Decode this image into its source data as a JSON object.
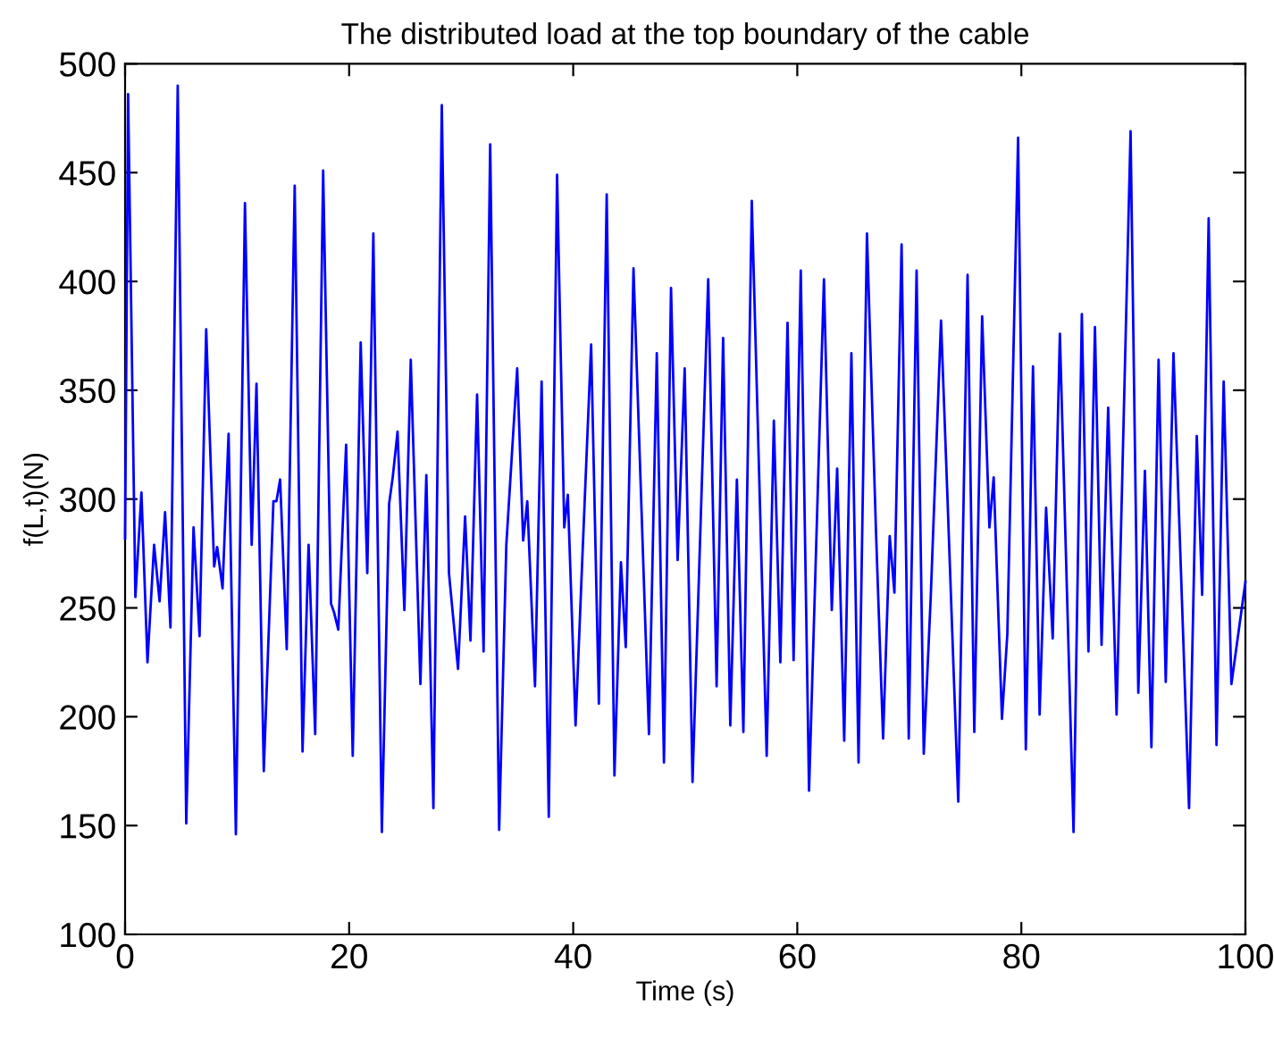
{
  "chart_data": {
    "type": "line",
    "title": "The distributed load at the top boundary of the cable",
    "xlabel": "Time (s)",
    "ylabel": "f(L,t)(N)",
    "xlim": [
      0,
      100
    ],
    "xticks": [
      0,
      20,
      40,
      60,
      80,
      100
    ],
    "ylim": [
      100,
      500
    ],
    "yticks": [
      100,
      150,
      200,
      250,
      300,
      350,
      400,
      450,
      500
    ],
    "grid": false,
    "legend": false,
    "line_style": "solid",
    "marker": "none",
    "series": [
      {
        "color": "#0000ff",
        "x": [
          0,
          0.27,
          0.92,
          1.46,
          2.0,
          2.59,
          3.08,
          3.57,
          4.05,
          4.7,
          5.46,
          6.11,
          6.65,
          7.24,
          7.95,
          8.22,
          8.7,
          9.24,
          9.89,
          10.7,
          11.3,
          11.73,
          12.38,
          13.24,
          13.51,
          13.84,
          14.43,
          15.14,
          15.84,
          16.38,
          16.97,
          17.68,
          18.38,
          18.65,
          19.03,
          19.73,
          20.32,
          21.03,
          21.62,
          22.16,
          22.92,
          23.57,
          23.89,
          24.32,
          24.93,
          25.5,
          26.36,
          26.89,
          27.52,
          28.27,
          28.91,
          29.72,
          30.35,
          30.83,
          31.42,
          32.0,
          32.59,
          33.39,
          34.03,
          35.0,
          35.53,
          35.9,
          36.59,
          37.18,
          37.82,
          38.56,
          39.2,
          39.52,
          40.21,
          40.8,
          41.6,
          42.29,
          42.99,
          43.68,
          44.26,
          44.69,
          45.38,
          46.02,
          46.76,
          47.46,
          48.1,
          48.73,
          49.32,
          49.95,
          50.65,
          52.05,
          52.8,
          53.38,
          54.02,
          54.61,
          55.19,
          55.94,
          57.27,
          57.91,
          58.49,
          59.13,
          59.67,
          60.31,
          61.05,
          62.38,
          63.08,
          63.56,
          64.19,
          64.83,
          65.47,
          66.22,
          67.02,
          67.66,
          68.25,
          68.67,
          69.31,
          69.95,
          70.65,
          71.29,
          71.92,
          72.83,
          73.41,
          74.37,
          75.2,
          75.8,
          76.5,
          77.15,
          77.53,
          78.27,
          78.75,
          79.71,
          80.4,
          81.04,
          81.63,
          82.21,
          82.8,
          83.44,
          84.66,
          85.4,
          85.99,
          86.57,
          87.16,
          87.75,
          88.5,
          89.75,
          90.44,
          91.03,
          91.61,
          92.25,
          92.89,
          93.58,
          94.97,
          95.66,
          96.14,
          96.72,
          97.42,
          98.06,
          98.75,
          100
        ],
        "values": [
          282,
          486,
          255,
          303,
          225,
          279,
          253,
          294,
          241,
          490,
          151,
          287,
          237,
          378,
          269,
          278,
          259,
          330,
          146,
          436,
          279,
          353,
          175,
          299,
          299,
          309,
          231,
          444,
          184,
          279,
          192,
          451,
          252,
          248,
          240,
          325,
          182,
          372,
          266,
          422,
          147,
          298,
          310,
          331,
          249,
          364,
          215,
          311,
          158,
          481,
          266,
          222,
          292,
          235,
          348,
          230,
          463,
          148,
          279,
          360,
          281,
          299,
          214,
          354,
          154,
          449,
          287,
          302,
          196,
          271,
          371,
          206,
          440,
          173,
          271,
          232,
          406,
          307,
          192,
          367,
          179,
          397,
          272,
          360,
          170,
          401,
          214,
          374,
          196,
          309,
          193,
          437,
          182,
          336,
          225,
          381,
          226,
          405,
          166,
          401,
          249,
          314,
          189,
          367,
          179,
          422,
          286,
          190,
          283,
          257,
          417,
          190,
          405,
          183,
          256,
          382,
          300,
          161,
          403,
          193,
          384,
          287,
          310,
          199,
          238,
          466,
          185,
          361,
          201,
          296,
          236,
          376,
          147,
          385,
          230,
          379,
          233,
          342,
          201,
          469,
          211,
          313,
          186,
          364,
          216,
          367,
          158,
          329,
          256,
          429,
          187,
          354,
          215,
          262
        ]
      }
    ]
  }
}
